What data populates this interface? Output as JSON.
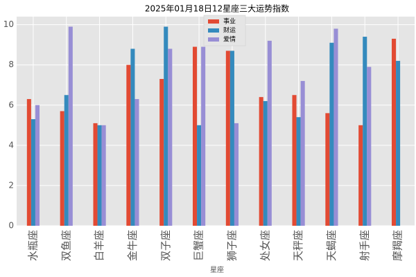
{
  "chart_data": {
    "type": "bar",
    "title": "2025年01月18日12星座三大运势指数",
    "xlabel": "星座",
    "categories": [
      "水瓶座",
      "双鱼座",
      "白羊座",
      "金牛座",
      "双子座",
      "巨蟹座",
      "狮子座",
      "处女座",
      "天秤座",
      "天蝎座",
      "射手座",
      "摩羯座"
    ],
    "series": [
      {
        "name": "事业",
        "color": "#E24A33",
        "values": [
          6.3,
          5.7,
          5.1,
          8.0,
          7.3,
          8.9,
          8.7,
          6.4,
          6.5,
          5.6,
          5.0,
          9.3
        ]
      },
      {
        "name": "财运",
        "color": "#348ABD",
        "values": [
          5.3,
          6.5,
          5.0,
          8.8,
          9.9,
          5.0,
          8.7,
          6.2,
          5.4,
          9.1,
          9.4,
          8.2
        ]
      },
      {
        "name": "爱情",
        "color": "#988ED5",
        "values": [
          6.0,
          9.9,
          5.0,
          6.3,
          8.8,
          8.9,
          5.1,
          9.2,
          7.2,
          9.8,
          7.9,
          null
        ]
      }
    ],
    "ylim": [
      0,
      10.4
    ],
    "yticks": [
      0,
      2,
      4,
      6,
      8,
      10
    ],
    "grid": true,
    "legend": "upper center"
  }
}
